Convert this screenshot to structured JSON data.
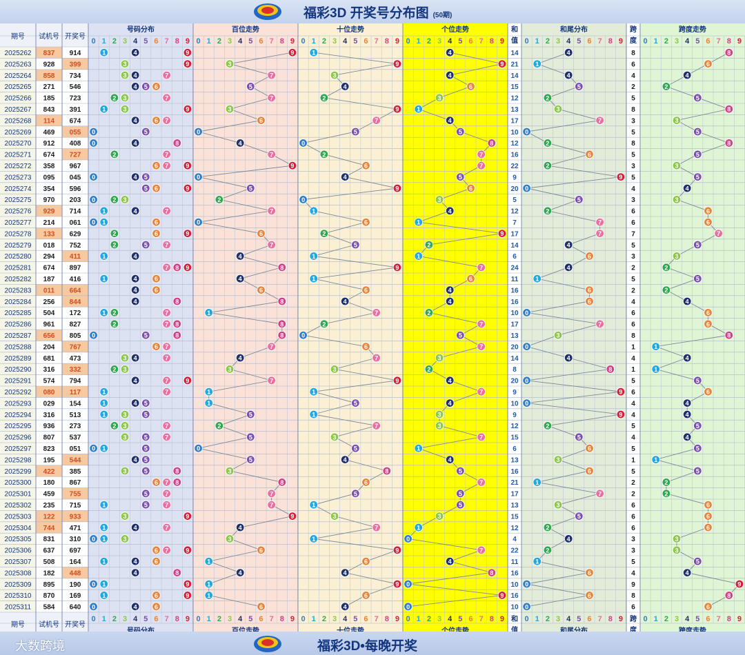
{
  "header": {
    "title": "福彩3D 开奖号分布图",
    "subtitle": "(50期)"
  },
  "footer": {
    "slogan": "福彩3D•每晚开奖",
    "brand": "大数跨境"
  },
  "columns": {
    "issue": "期号",
    "trial": "试机号",
    "draw": "开奖号",
    "dist": "号码分布",
    "hundreds": "百位走势",
    "tens": "十位走势",
    "units": "个位走势",
    "sum": "和值",
    "tail": "和尾分布",
    "span": "跨度",
    "span_trend": "跨度走势"
  },
  "digits": [
    "0",
    "1",
    "2",
    "3",
    "4",
    "5",
    "6",
    "7",
    "8",
    "9"
  ],
  "colors": {
    "digit_balls": [
      "#2f7fc8",
      "#22a8e0",
      "#2fa84f",
      "#8cc84a",
      "#1f2f6b",
      "#7b4fb0",
      "#e8843a",
      "#e86fa0",
      "#d43f86",
      "#d81f3a"
    ],
    "dist_bg": "#dde2f2",
    "hundreds_bg": "#fae2d8",
    "tens_bg": "#fbf0d4",
    "units_bg": "#ffff00",
    "tail_bg": "#e3ecd9",
    "span_bg": "#e0f5d4",
    "highlight_trial": "#f7c9a0",
    "issue_bg": "#f5f5e8"
  },
  "chart_data": {
    "type": "table",
    "rows": [
      {
        "issue": "2025262",
        "trial": "837",
        "draw": "914",
        "sum": 14,
        "span": 8,
        "h": "trial"
      },
      {
        "issue": "2025263",
        "trial": "928",
        "draw": "399",
        "sum": 21,
        "span": 6,
        "h": "draw"
      },
      {
        "issue": "2025264",
        "trial": "858",
        "draw": "734",
        "sum": 14,
        "span": 4,
        "h": "trial"
      },
      {
        "issue": "2025265",
        "trial": "271",
        "draw": "546",
        "sum": 15,
        "span": 2,
        "h": ""
      },
      {
        "issue": "2025266",
        "trial": "185",
        "draw": "723",
        "sum": 12,
        "span": 5,
        "h": ""
      },
      {
        "issue": "2025267",
        "trial": "843",
        "draw": "391",
        "sum": 13,
        "span": 8,
        "h": ""
      },
      {
        "issue": "2025268",
        "trial": "114",
        "draw": "674",
        "sum": 17,
        "span": 3,
        "h": "trial"
      },
      {
        "issue": "2025269",
        "trial": "469",
        "draw": "055",
        "sum": 10,
        "span": 5,
        "h": "draw"
      },
      {
        "issue": "2025270",
        "trial": "912",
        "draw": "408",
        "sum": 12,
        "span": 8,
        "h": ""
      },
      {
        "issue": "2025271",
        "trial": "674",
        "draw": "727",
        "sum": 16,
        "span": 5,
        "h": "draw"
      },
      {
        "issue": "2025272",
        "trial": "358",
        "draw": "967",
        "sum": 22,
        "span": 3,
        "h": ""
      },
      {
        "issue": "2025273",
        "trial": "095",
        "draw": "045",
        "sum": 9,
        "span": 5,
        "h": ""
      },
      {
        "issue": "2025274",
        "trial": "354",
        "draw": "596",
        "sum": 20,
        "span": 4,
        "h": ""
      },
      {
        "issue": "2025275",
        "trial": "970",
        "draw": "203",
        "sum": 5,
        "span": 3,
        "h": ""
      },
      {
        "issue": "2025276",
        "trial": "929",
        "draw": "714",
        "sum": 12,
        "span": 6,
        "h": "trial"
      },
      {
        "issue": "2025277",
        "trial": "214",
        "draw": "061",
        "sum": 7,
        "span": 6,
        "h": ""
      },
      {
        "issue": "2025278",
        "trial": "133",
        "draw": "629",
        "sum": 17,
        "span": 7,
        "h": "trial"
      },
      {
        "issue": "2025279",
        "trial": "018",
        "draw": "752",
        "sum": 14,
        "span": 5,
        "h": ""
      },
      {
        "issue": "2025280",
        "trial": "294",
        "draw": "411",
        "sum": 6,
        "span": 3,
        "h": "draw"
      },
      {
        "issue": "2025281",
        "trial": "674",
        "draw": "897",
        "sum": 24,
        "span": 2,
        "h": ""
      },
      {
        "issue": "2025282",
        "trial": "187",
        "draw": "416",
        "sum": 11,
        "span": 5,
        "h": ""
      },
      {
        "issue": "2025283",
        "trial": "011",
        "draw": "664",
        "sum": 16,
        "span": 2,
        "h": "both"
      },
      {
        "issue": "2025284",
        "trial": "256",
        "draw": "844",
        "sum": 16,
        "span": 4,
        "h": "draw"
      },
      {
        "issue": "2025285",
        "trial": "504",
        "draw": "172",
        "sum": 10,
        "span": 6,
        "h": ""
      },
      {
        "issue": "2025286",
        "trial": "961",
        "draw": "827",
        "sum": 17,
        "span": 6,
        "h": ""
      },
      {
        "issue": "2025287",
        "trial": "656",
        "draw": "805",
        "sum": 13,
        "span": 8,
        "h": "trial"
      },
      {
        "issue": "2025288",
        "trial": "204",
        "draw": "767",
        "sum": 20,
        "span": 1,
        "h": "draw"
      },
      {
        "issue": "2025289",
        "trial": "681",
        "draw": "473",
        "sum": 14,
        "span": 4,
        "h": ""
      },
      {
        "issue": "2025290",
        "trial": "316",
        "draw": "332",
        "sum": 8,
        "span": 1,
        "h": "draw"
      },
      {
        "issue": "2025291",
        "trial": "574",
        "draw": "794",
        "sum": 20,
        "span": 5,
        "h": ""
      },
      {
        "issue": "2025292",
        "trial": "080",
        "draw": "117",
        "sum": 9,
        "span": 6,
        "h": "both"
      },
      {
        "issue": "2025293",
        "trial": "029",
        "draw": "154",
        "sum": 10,
        "span": 4,
        "h": ""
      },
      {
        "issue": "2025294",
        "trial": "316",
        "draw": "513",
        "sum": 9,
        "span": 4,
        "h": ""
      },
      {
        "issue": "2025295",
        "trial": "936",
        "draw": "273",
        "sum": 12,
        "span": 5,
        "h": ""
      },
      {
        "issue": "2025296",
        "trial": "807",
        "draw": "537",
        "sum": 15,
        "span": 4,
        "h": ""
      },
      {
        "issue": "2025297",
        "trial": "823",
        "draw": "051",
        "sum": 6,
        "span": 5,
        "h": ""
      },
      {
        "issue": "2025298",
        "trial": "195",
        "draw": "544",
        "sum": 13,
        "span": 1,
        "h": "draw"
      },
      {
        "issue": "2025299",
        "trial": "422",
        "draw": "385",
        "sum": 16,
        "span": 5,
        "h": "trial"
      },
      {
        "issue": "2025300",
        "trial": "180",
        "draw": "867",
        "sum": 21,
        "span": 2,
        "h": ""
      },
      {
        "issue": "2025301",
        "trial": "459",
        "draw": "755",
        "sum": 17,
        "span": 2,
        "h": "draw"
      },
      {
        "issue": "2025302",
        "trial": "235",
        "draw": "715",
        "sum": 13,
        "span": 6,
        "h": ""
      },
      {
        "issue": "2025303",
        "trial": "122",
        "draw": "933",
        "sum": 15,
        "span": 6,
        "h": "both"
      },
      {
        "issue": "2025304",
        "trial": "744",
        "draw": "471",
        "sum": 12,
        "span": 6,
        "h": "trial"
      },
      {
        "issue": "2025305",
        "trial": "831",
        "draw": "310",
        "sum": 4,
        "span": 3,
        "h": ""
      },
      {
        "issue": "2025306",
        "trial": "637",
        "draw": "697",
        "sum": 22,
        "span": 3,
        "h": ""
      },
      {
        "issue": "2025307",
        "trial": "508",
        "draw": "164",
        "sum": 11,
        "span": 5,
        "h": ""
      },
      {
        "issue": "2025308",
        "trial": "182",
        "draw": "448",
        "sum": 16,
        "span": 4,
        "h": "draw"
      },
      {
        "issue": "2025309",
        "trial": "895",
        "draw": "190",
        "sum": 10,
        "span": 9,
        "h": ""
      },
      {
        "issue": "2025310",
        "trial": "870",
        "draw": "169",
        "sum": 16,
        "span": 8,
        "h": ""
      },
      {
        "issue": "2025311",
        "trial": "584",
        "draw": "640",
        "sum": 10,
        "span": 6,
        "h": ""
      }
    ]
  }
}
